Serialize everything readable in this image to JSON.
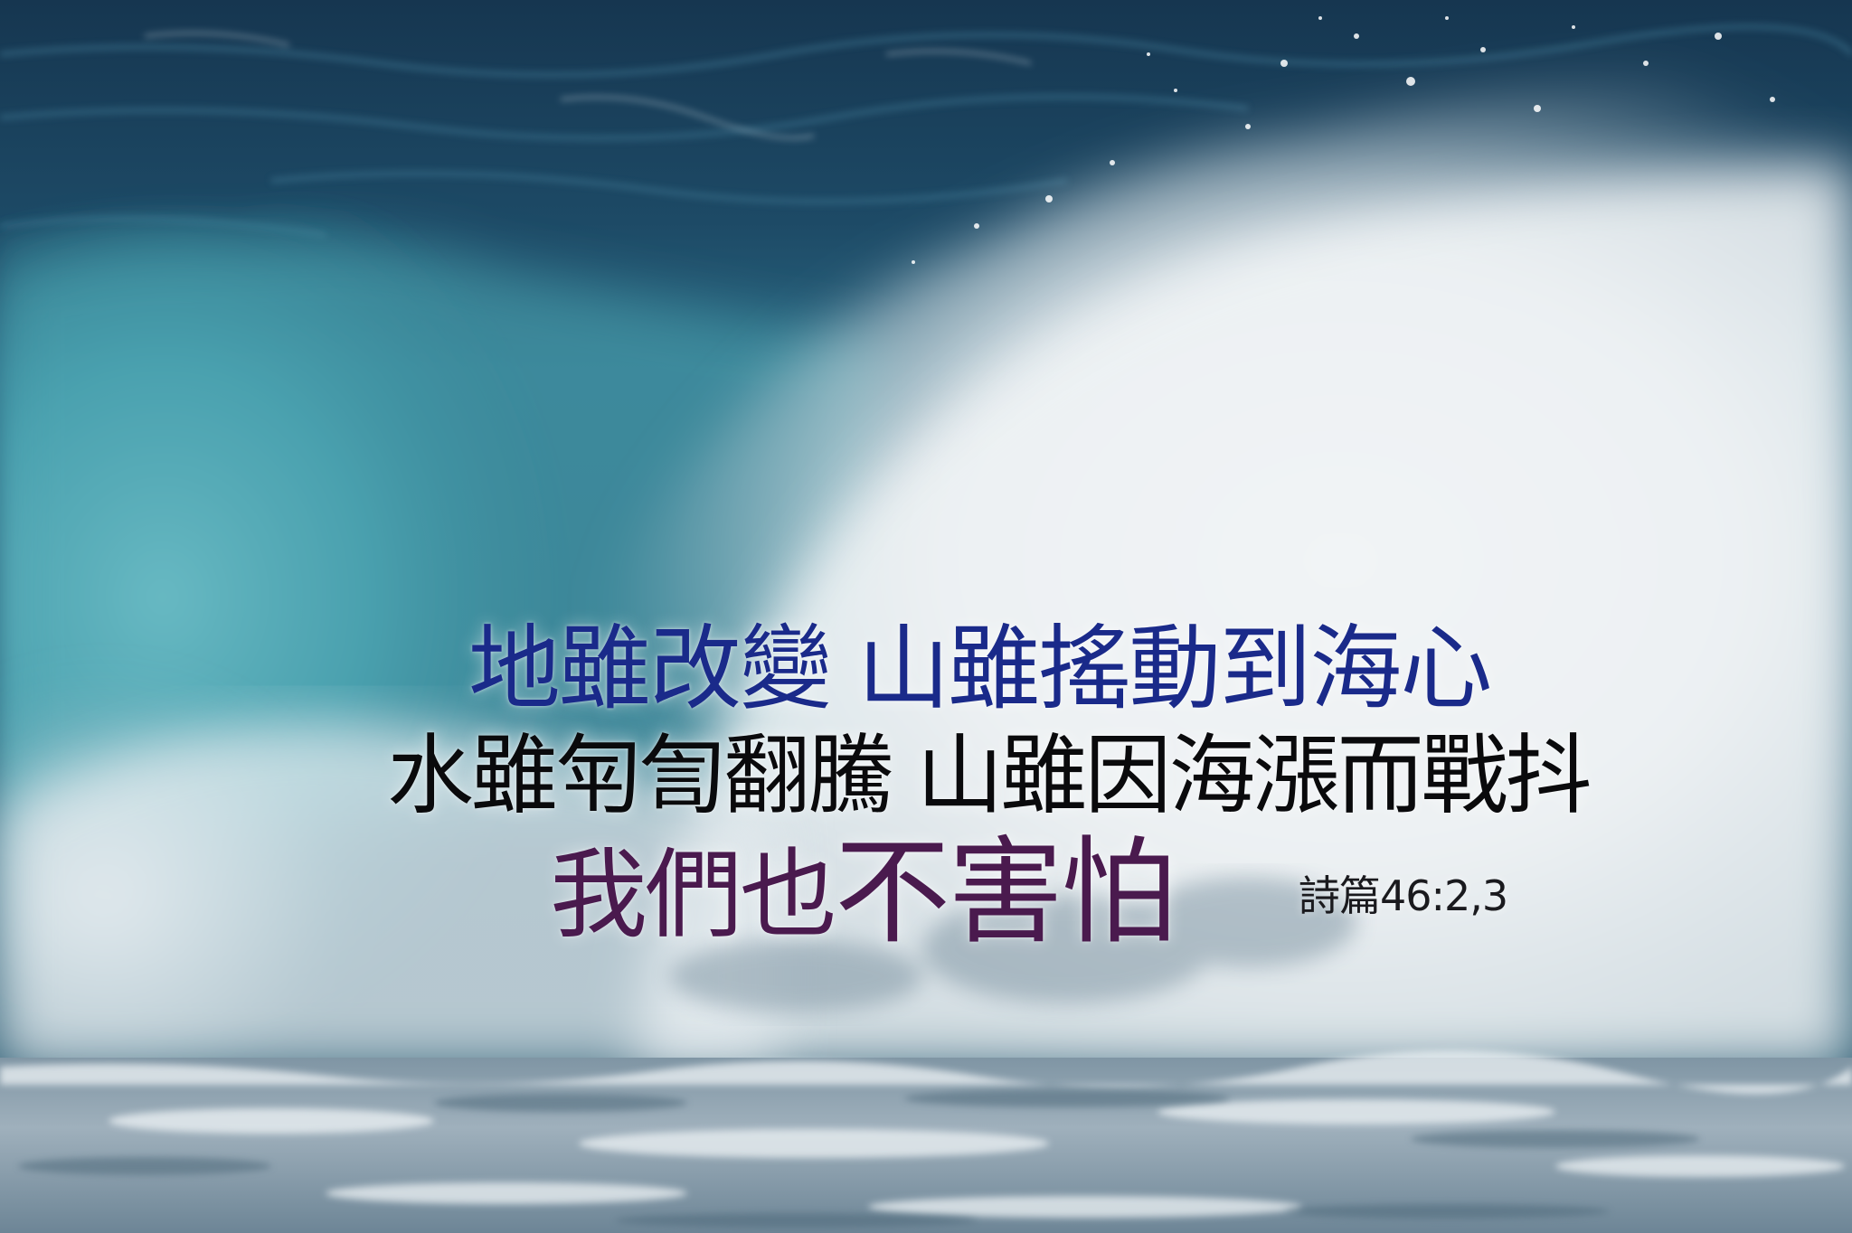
{
  "verse": {
    "line1": "地雖改變 山雖搖動到海心",
    "line2": "水雖匉訇翻騰 山雖因海漲而戰抖",
    "line3_a": "我們也",
    "line3_b": "不害怕",
    "reference": "詩篇46:2,3"
  },
  "colors": {
    "line1": "#1a2a8a",
    "line2": "#0a0a0c",
    "line3": "#4a1a4e",
    "deep_sea": "#1a3a52",
    "teal_wave": "#5fb3bf",
    "foam": "#eef3f5"
  }
}
